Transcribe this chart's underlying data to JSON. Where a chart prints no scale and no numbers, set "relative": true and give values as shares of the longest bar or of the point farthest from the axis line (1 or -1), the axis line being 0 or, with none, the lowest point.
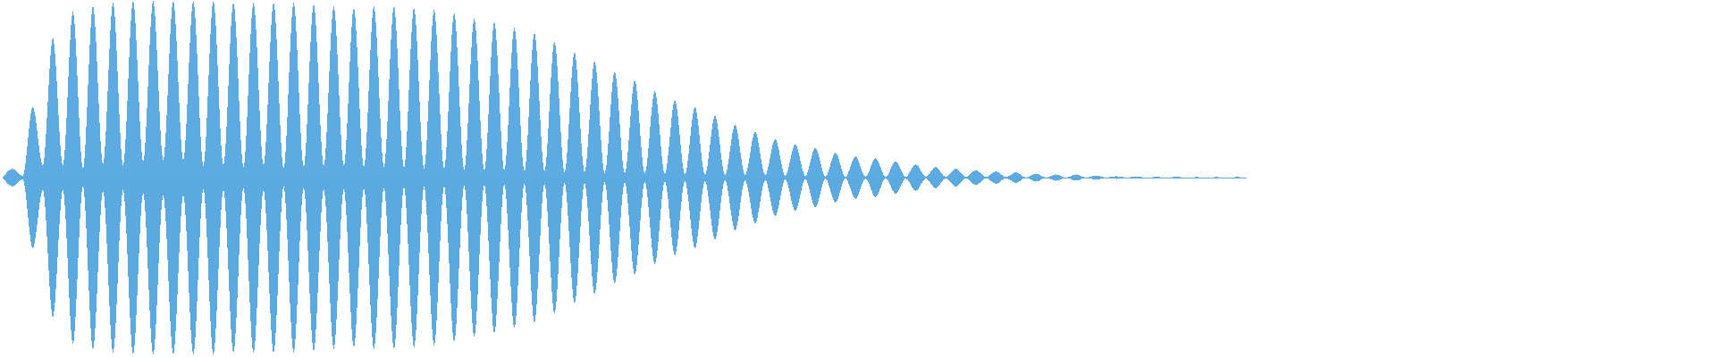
{
  "chart_data": {
    "type": "area",
    "relative": true,
    "tick_labels": false,
    "categories": [
      null,
      null,
      null,
      null,
      null,
      null,
      null,
      null,
      null,
      null,
      null,
      null,
      null,
      null,
      null,
      null,
      null,
      null,
      null,
      null,
      null,
      null,
      null,
      null,
      null,
      null,
      null,
      null,
      null,
      null,
      null,
      null,
      null,
      null,
      null,
      null,
      null,
      null,
      null,
      null,
      null,
      null,
      null,
      null,
      null,
      null,
      null,
      null,
      null,
      null,
      null,
      null,
      null,
      null,
      null,
      null,
      null,
      null,
      null,
      null,
      null,
      null,
      null,
      null,
      null,
      null,
      null,
      null,
      null,
      null,
      null,
      null,
      null,
      null,
      null,
      null,
      null,
      null,
      null,
      null,
      null,
      null,
      null,
      null,
      null,
      null,
      null,
      null,
      null,
      null,
      null,
      null,
      null,
      null,
      null,
      null,
      null,
      null,
      null,
      null,
      null,
      null,
      null,
      null,
      null,
      null,
      null,
      null,
      null,
      null,
      null,
      null,
      null,
      null,
      null,
      null,
      null,
      null,
      null,
      null,
      null,
      null,
      null,
      null,
      null
    ],
    "series": [
      {
        "color": "#5dabe2",
        "values": [
          0,
          0.05,
          0.01,
          0.4,
          0.07,
          0.79,
          0.07,
          0.94,
          0.05,
          0.97,
          0.076,
          0.99,
          0.07,
          1,
          0.09,
          1,
          0.1,
          1,
          0.1,
          1,
          0.066,
          1,
          0.07,
          0.99,
          0.06,
          0.99,
          0.07,
          0.99,
          0.05,
          0.99,
          0.06,
          0.98,
          0.066,
          0.97,
          0.066,
          0.96,
          0.06,
          0.97,
          0.06,
          0.97,
          0.056,
          0.96,
          0.05,
          0.95,
          0.05,
          0.93,
          0.045,
          0.9,
          0.04,
          0.88,
          0.04,
          0.85,
          0.035,
          0.82,
          0.035,
          0.77,
          0.03,
          0.71,
          0.03,
          0.66,
          0.025,
          0.6,
          0.025,
          0.55,
          0.025,
          0.49,
          0.02,
          0.44,
          0.02,
          0.4,
          0.018,
          0.35,
          0.015,
          0.3,
          0.015,
          0.26,
          0.013,
          0.22,
          0.01,
          0.19,
          0.008,
          0.17,
          0.005,
          0.14,
          0.005,
          0.12,
          0.005,
          0.11,
          0.005,
          0.09,
          0.005,
          0.076,
          0.005,
          0.061,
          0.003,
          0.051,
          0.003,
          0.043,
          0.003,
          0.035,
          0.003,
          0.03,
          0,
          0.023,
          0,
          0.018,
          0,
          0.018,
          0,
          0.012,
          0,
          0.008,
          0,
          0.006,
          0,
          0.004,
          0,
          0.004,
          0,
          0.003,
          0,
          0.003,
          0,
          0.003,
          0
        ]
      },
      {
        "color": "#5aa9e1",
        "values": [
          0,
          -0.05,
          -0.01,
          -0.4,
          -0.07,
          -0.79,
          -0.07,
          -0.94,
          -0.05,
          -0.97,
          -0.076,
          -0.99,
          -0.07,
          -1,
          -0.09,
          -1,
          -0.1,
          -1,
          -0.1,
          -1,
          -0.066,
          -1,
          -0.07,
          -0.99,
          -0.06,
          -0.99,
          -0.07,
          -0.99,
          -0.05,
          -0.99,
          -0.06,
          -0.98,
          -0.066,
          -0.97,
          -0.066,
          -0.96,
          -0.06,
          -0.97,
          -0.06,
          -0.97,
          -0.056,
          -0.96,
          -0.05,
          -0.95,
          -0.05,
          -0.93,
          -0.045,
          -0.9,
          -0.04,
          -0.88,
          -0.04,
          -0.85,
          -0.035,
          -0.82,
          -0.035,
          -0.77,
          -0.03,
          -0.71,
          -0.03,
          -0.66,
          -0.025,
          -0.6,
          -0.025,
          -0.55,
          -0.025,
          -0.49,
          -0.02,
          -0.44,
          -0.02,
          -0.4,
          -0.018,
          -0.35,
          -0.015,
          -0.3,
          -0.015,
          -0.26,
          -0.013,
          -0.22,
          -0.01,
          -0.19,
          -0.008,
          -0.17,
          -0.005,
          -0.14,
          -0.005,
          -0.12,
          -0.005,
          -0.11,
          -0.005,
          -0.09,
          -0.005,
          -0.076,
          -0.005,
          -0.061,
          -0.003,
          -0.051,
          -0.003,
          -0.043,
          -0.003,
          -0.035,
          -0.003,
          -0.03,
          0,
          -0.023,
          0,
          -0.018,
          0,
          -0.018,
          0,
          -0.012,
          0,
          -0.008,
          0,
          -0.006,
          0,
          -0.004,
          0,
          -0.004,
          0,
          -0.003,
          0,
          -0.003,
          0,
          -0.003,
          0
        ]
      }
    ]
  }
}
